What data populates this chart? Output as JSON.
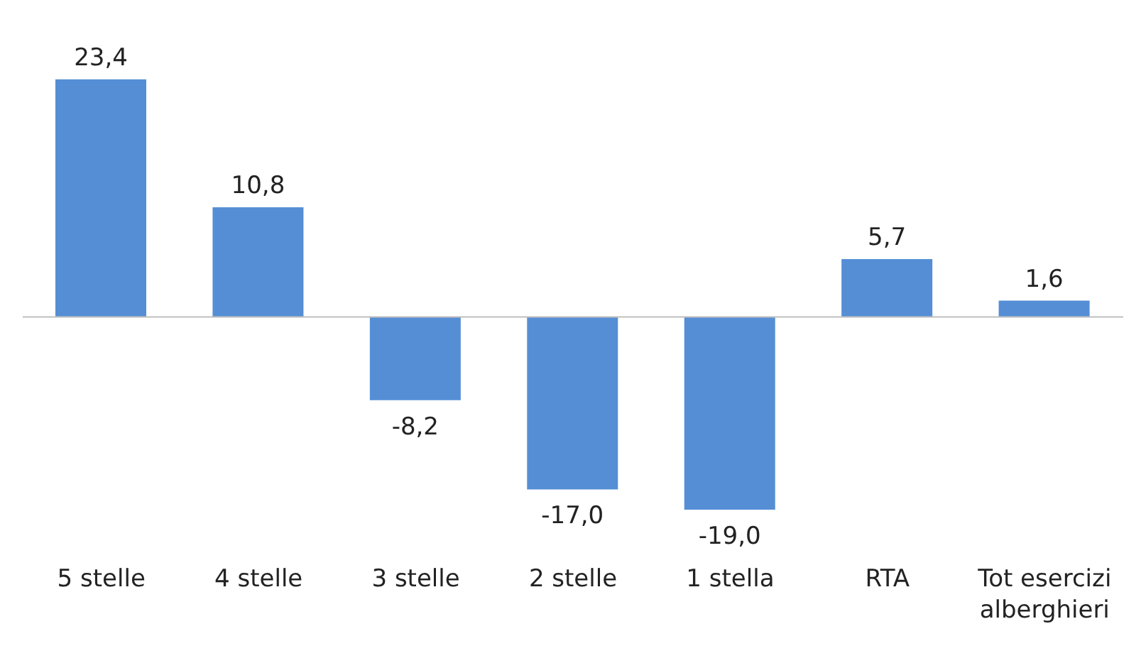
{
  "chart_data": {
    "type": "bar",
    "categories": [
      "5 stelle",
      "4 stelle",
      "3 stelle",
      "2 stelle",
      "1 stella",
      "RTA",
      "Tot esercizi alberghieri"
    ],
    "values": [
      23.4,
      10.8,
      -8.2,
      -17.0,
      -19.0,
      5.7,
      1.6
    ],
    "color": "#558ed5",
    "value_labels": [
      "23,4",
      "10,8",
      "-8,2",
      "-17,0",
      "-19,0",
      "5,7",
      "1,6"
    ]
  }
}
